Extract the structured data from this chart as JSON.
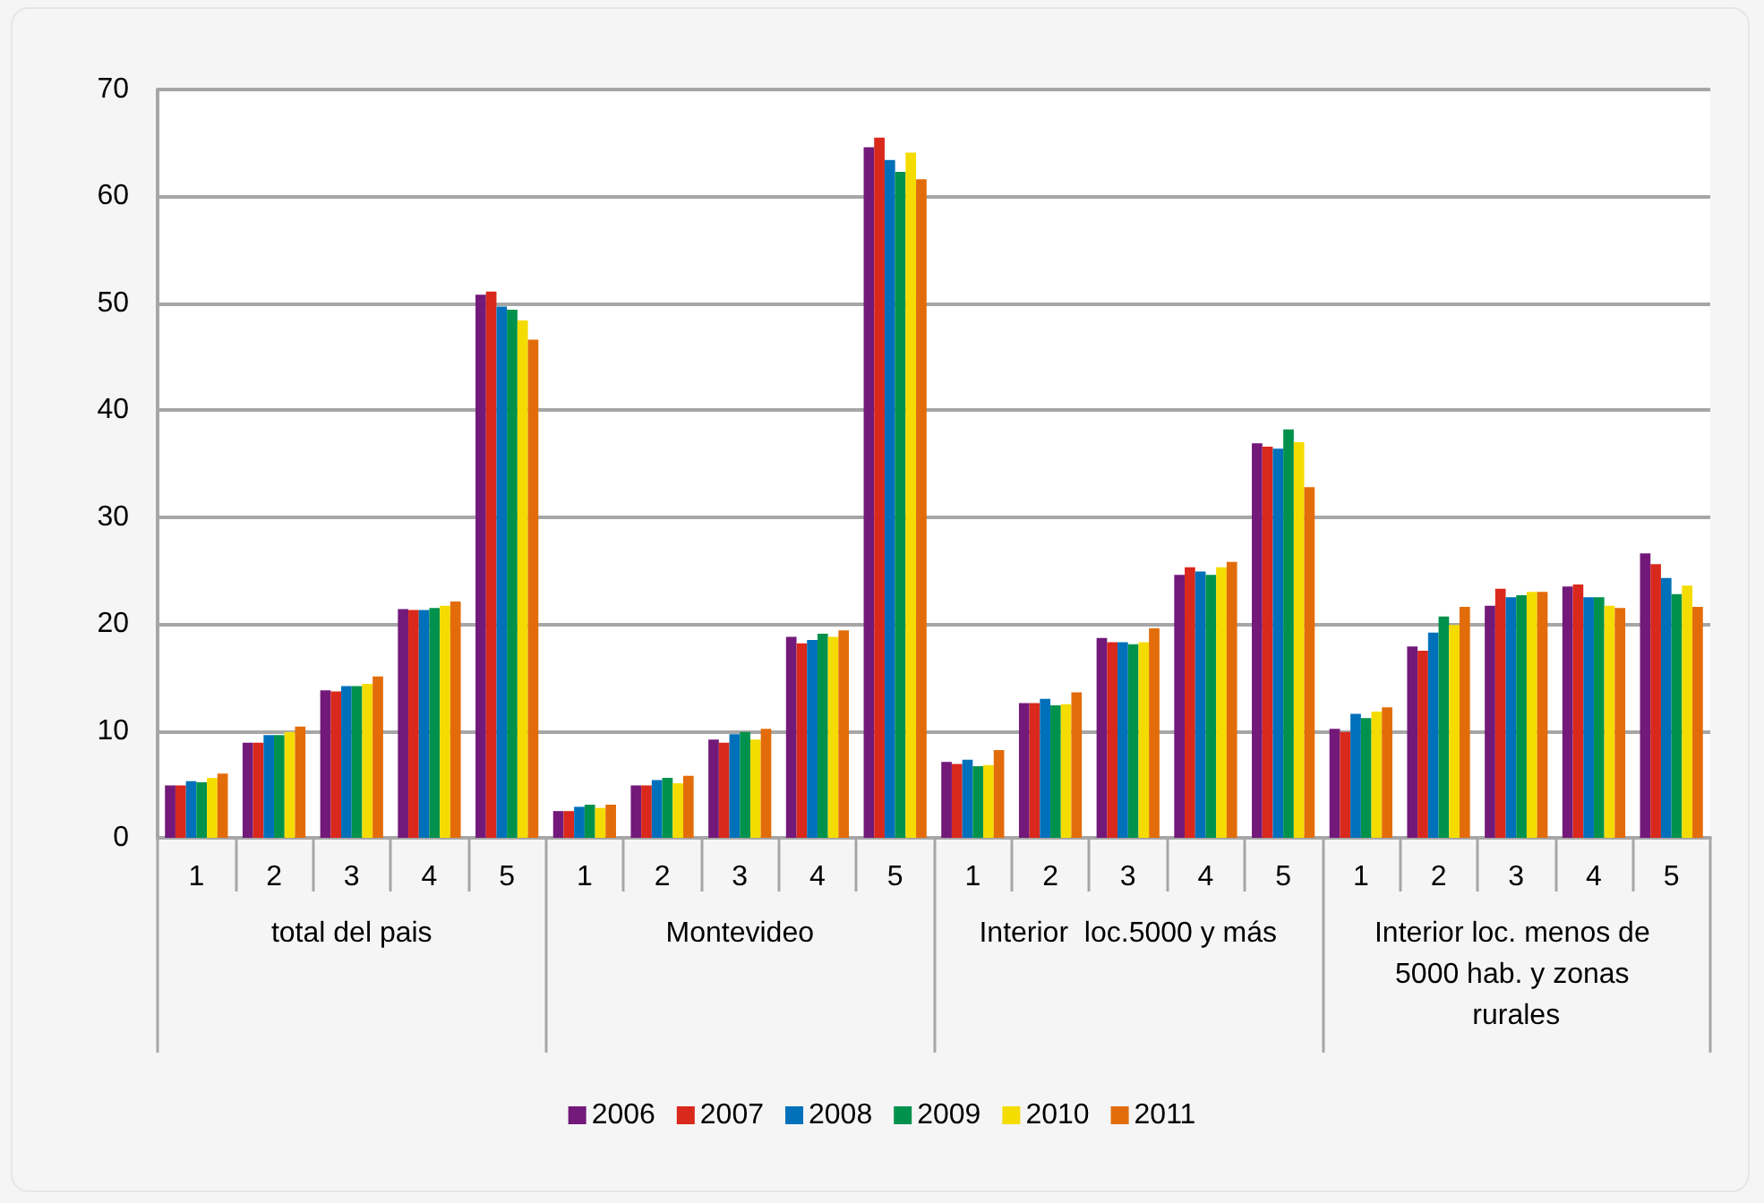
{
  "chart_data": {
    "type": "bar",
    "categories": [
      "1",
      "2",
      "3",
      "4",
      "5",
      "1",
      "2",
      "3",
      "4",
      "5",
      "1",
      "2",
      "3",
      "4",
      "5",
      "1",
      "2",
      "3",
      "4",
      "5"
    ],
    "annotations": [
      "total del pais",
      "Montevideo",
      "Interior  loc.5000 y más",
      "Interior loc. menos de 5000 hab. y zonas rurales"
    ],
    "series": [
      {
        "name": "2006",
        "color": "#72197a",
        "values": [
          4.9,
          8.9,
          13.8,
          21.4,
          50.8,
          2.5,
          4.9,
          9.2,
          18.8,
          64.6,
          7.1,
          12.6,
          18.7,
          24.6,
          36.9,
          10.2,
          17.9,
          21.7,
          23.5,
          26.6
        ]
      },
      {
        "name": "2007",
        "color": "#d9281c",
        "values": [
          4.9,
          8.9,
          13.7,
          21.3,
          51.1,
          2.5,
          4.9,
          8.9,
          18.2,
          65.5,
          6.9,
          12.6,
          18.3,
          25.3,
          36.6,
          9.9,
          17.5,
          23.3,
          23.7,
          25.6
        ]
      },
      {
        "name": "2008",
        "color": "#0070bb",
        "values": [
          5.3,
          9.6,
          14.2,
          21.3,
          49.7,
          2.9,
          5.4,
          9.7,
          18.5,
          63.4,
          7.3,
          13.0,
          18.3,
          24.9,
          36.4,
          11.6,
          19.2,
          22.5,
          22.5,
          24.3
        ]
      },
      {
        "name": "2009",
        "color": "#00924c",
        "values": [
          5.2,
          9.6,
          14.2,
          21.5,
          49.4,
          3.1,
          5.6,
          9.9,
          19.1,
          62.3,
          6.7,
          12.4,
          18.1,
          24.6,
          38.2,
          11.2,
          20.7,
          22.7,
          22.5,
          22.8
        ]
      },
      {
        "name": "2010",
        "color": "#f5dc00",
        "values": [
          5.6,
          9.9,
          14.4,
          21.7,
          48.4,
          2.8,
          5.1,
          9.2,
          18.8,
          64.1,
          6.8,
          12.5,
          18.3,
          25.3,
          37.0,
          11.8,
          19.9,
          23.0,
          21.7,
          23.6
        ]
      },
      {
        "name": "2011",
        "color": "#e36c0a",
        "values": [
          6.0,
          10.4,
          15.1,
          22.1,
          46.6,
          3.1,
          5.8,
          10.2,
          19.4,
          61.6,
          8.2,
          13.6,
          19.6,
          25.8,
          32.8,
          12.2,
          21.6,
          23.0,
          21.5,
          21.6
        ]
      }
    ],
    "ylim": [
      0,
      70
    ],
    "yticks": [
      0,
      10,
      20,
      30,
      40,
      50,
      60,
      70
    ],
    "grid": "y",
    "legend": "bottom"
  }
}
